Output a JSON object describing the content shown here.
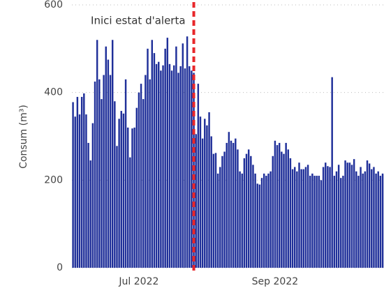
{
  "chart_data": {
    "type": "bar",
    "ylabel": "Consum (m³)",
    "color": "#1f2f99",
    "ylim": [
      0,
      600
    ],
    "yticks": [
      0,
      200,
      400,
      600
    ],
    "grid": true,
    "annotations": [
      {
        "label": "Inici estat d'alerta",
        "x": 55.5,
        "color": "#e8272a"
      }
    ],
    "categories": [
      null,
      null,
      null,
      null,
      null,
      null,
      null,
      null,
      null,
      null,
      null,
      null,
      null,
      null,
      null,
      null,
      null,
      null,
      null,
      null,
      null,
      null,
      null,
      null,
      null,
      null,
      null,
      null,
      null,
      null,
      "Jul 2022",
      null,
      null,
      null,
      null,
      null,
      null,
      null,
      null,
      null,
      null,
      null,
      null,
      null,
      null,
      null,
      null,
      null,
      null,
      null,
      null,
      null,
      null,
      null,
      null,
      null,
      null,
      null,
      null,
      null,
      null,
      null,
      null,
      null,
      null,
      null,
      null,
      null,
      null,
      null,
      null,
      null,
      null,
      null,
      null,
      null,
      null,
      null,
      null,
      null,
      null,
      null,
      null,
      null,
      null,
      null,
      null,
      null,
      null,
      null,
      null,
      null,
      "Sep 2022",
      null,
      null,
      null,
      null,
      null,
      null,
      null,
      null,
      null,
      null,
      null,
      null,
      null,
      null,
      null,
      null,
      null,
      null,
      null,
      null,
      null,
      null,
      null,
      null,
      null,
      null,
      null,
      null,
      null,
      null,
      null,
      null,
      null,
      null,
      null,
      null,
      null,
      null,
      null,
      null,
      null,
      null,
      null,
      null,
      null,
      null,
      null,
      null,
      null,
      null
    ],
    "values": [
      378,
      345,
      390,
      350,
      390,
      398,
      350,
      285,
      245,
      330,
      425,
      520,
      430,
      385,
      440,
      505,
      475,
      440,
      520,
      380,
      278,
      340,
      358,
      352,
      430,
      320,
      252,
      318,
      320,
      365,
      400,
      420,
      385,
      440,
      500,
      430,
      520,
      490,
      465,
      470,
      450,
      462,
      500,
      525,
      465,
      450,
      462,
      505,
      445,
      460,
      512,
      455,
      528,
      460,
      450,
      445,
      305,
      420,
      345,
      295,
      340,
      325,
      355,
      300,
      260,
      262,
      215,
      230,
      255,
      265,
      285,
      310,
      290,
      285,
      295,
      270,
      220,
      215,
      250,
      260,
      270,
      255,
      235,
      215,
      192,
      190,
      205,
      215,
      210,
      215,
      220,
      255,
      290,
      280,
      285,
      265,
      260,
      285,
      270,
      250,
      225,
      230,
      220,
      240,
      225,
      225,
      230,
      235,
      210,
      215,
      210,
      210,
      210,
      200,
      230,
      240,
      232,
      230,
      435,
      210,
      220,
      235,
      205,
      210,
      245,
      240,
      240,
      235,
      248,
      220,
      210,
      230,
      215,
      220,
      245,
      238,
      225,
      230,
      215,
      220,
      210,
      215,
      212
    ]
  }
}
